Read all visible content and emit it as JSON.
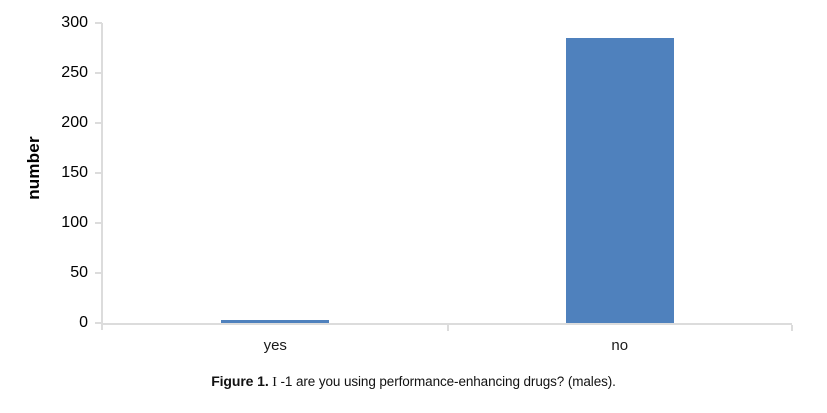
{
  "chart_data": {
    "type": "bar",
    "title": "",
    "categories": [
      "yes",
      "no"
    ],
    "values": [
      3,
      285
    ],
    "xlabel": "",
    "ylabel": "number",
    "ylim": [
      0,
      300
    ],
    "yticks": [
      0,
      50,
      100,
      150,
      200,
      250,
      300
    ],
    "grid": false,
    "legend": false,
    "bar_color": "#4F81BD",
    "axis_color": "#dcdcdc"
  },
  "caption": {
    "figure_label": "Figure 1.",
    "roman_numeral": "I",
    "body": "-1 are you using performance-enhancing drugs? (males)."
  }
}
